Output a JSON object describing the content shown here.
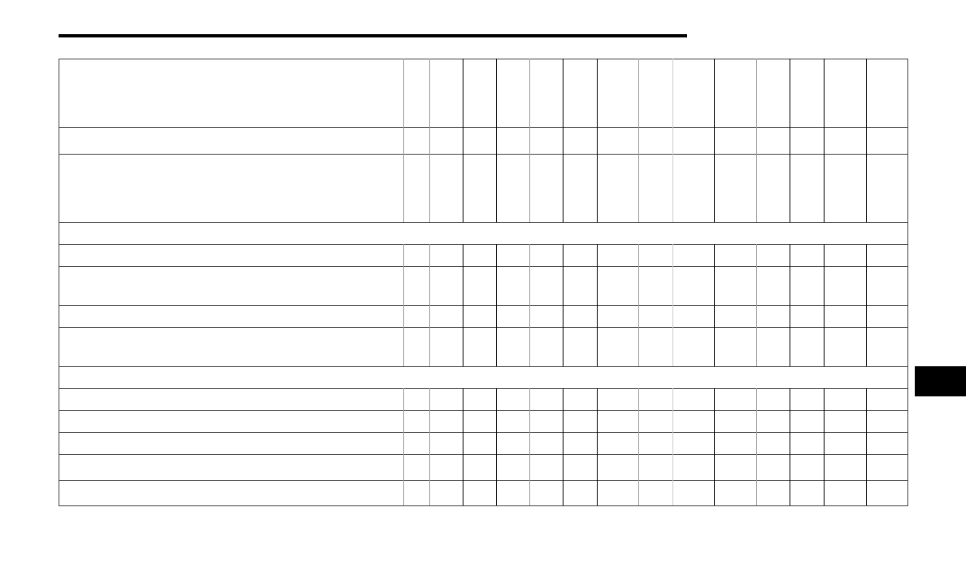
{
  "colors": {
    "rule": "#000000",
    "tab": "#000000",
    "grid_dark": "#000000",
    "grid_mid": "#999999",
    "grid_light": "#cccccc",
    "grid_row": "#444444"
  }
}
